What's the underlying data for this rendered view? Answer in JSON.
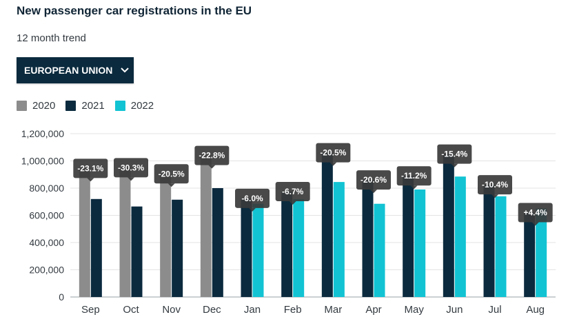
{
  "header": {
    "title": "New passenger car registrations in the EU",
    "subtitle": "12 month trend"
  },
  "dropdown": {
    "label": "EUROPEAN UNION",
    "icon": "chevron-down-icon"
  },
  "legend": [
    {
      "label": "2020",
      "color": "#8c8c8c"
    },
    {
      "label": "2021",
      "color": "#0b2a3e"
    },
    {
      "label": "2022",
      "color": "#12c3d3"
    }
  ],
  "chart_data": {
    "type": "bar",
    "title": "New passenger car registrations in the EU",
    "subtitle": "12 month trend",
    "categories": [
      "Sep",
      "Oct",
      "Nov",
      "Dec",
      "Jan",
      "Feb",
      "Mar",
      "Apr",
      "May",
      "Jun",
      "Jul",
      "Aug"
    ],
    "series": [
      {
        "name": "2020",
        "color": "#8c8c8c",
        "values": [
          945000,
          950000,
          905000,
          1040000,
          null,
          null,
          null,
          null,
          null,
          null,
          null,
          null
        ]
      },
      {
        "name": "2021",
        "color": "#0b2a3e",
        "values": [
          720000,
          665000,
          715000,
          800000,
          725000,
          775000,
          1060000,
          860000,
          890000,
          1050000,
          825000,
          620000
        ]
      },
      {
        "name": "2022",
        "color": "#12c3d3",
        "values": [
          null,
          null,
          null,
          null,
          685000,
          720000,
          845000,
          685000,
          790000,
          885000,
          740000,
          650000
        ]
      }
    ],
    "change_labels": [
      "-23.1%",
      "-30.3%",
      "-20.5%",
      "-22.8%",
      "-6.0%",
      "-6.7%",
      "-20.5%",
      "-20.6%",
      "-11.2%",
      "-15.4%",
      "-10.4%",
      "+4.4%"
    ],
    "y_ticks": [
      "0",
      "200,000",
      "400,000",
      "600,000",
      "800,000",
      "1,000,000",
      "1,200,000"
    ],
    "ylim": [
      0,
      1200000
    ],
    "grid": true,
    "legend_position": "top-left"
  }
}
